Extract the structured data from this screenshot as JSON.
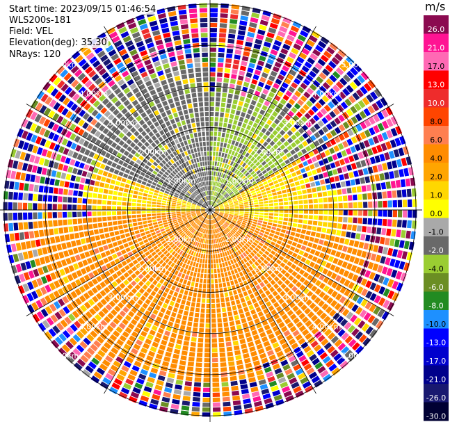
{
  "header": {
    "start_time": "Start time: 2023/09/15 01:46:54",
    "instrument": "WLS200s-181",
    "field": "Field: VEL",
    "elevation": "Elevation(deg): 35.30",
    "nrays": "NRays: 120"
  },
  "chart_data": {
    "type": "heatmap",
    "projection": "polar-ppi",
    "field": "VEL",
    "units": "m/s",
    "elevation_deg": 35.3,
    "nrays": 120,
    "range_ring_labels": [
      "1.00km",
      "2.00km",
      "3.00km",
      "4.00km",
      "5.00km"
    ],
    "range_rings_km": [
      1,
      2,
      3,
      4,
      5
    ],
    "max_range_km": 5.15,
    "grid": true,
    "colorbar": {
      "title": "m/s",
      "tick_labels": [
        "26.0",
        "21.0",
        "17.0",
        "13.0",
        "10.0",
        "8.0",
        "6.0",
        "4.0",
        "2.0",
        "1.0",
        "0.0",
        "-1.0",
        "-2.0",
        "-4.0",
        "-6.0",
        "-8.0",
        "-10.0",
        "-13.0",
        "-17.0",
        "-21.0",
        "-26.0",
        "-30.0"
      ],
      "colors": [
        "#8B0A50",
        "#FF1493",
        "#FF69B4",
        "#FF0000",
        "#EE2C2C",
        "#FF4500",
        "#FF7F50",
        "#FF8C00",
        "#FFA500",
        "#FFD700",
        "#FFFF00",
        "#A9A9A9",
        "#696969",
        "#9ACD32",
        "#6B8E23",
        "#228B22",
        "#1E90FF",
        "#0000FF",
        "#0000CD",
        "#00008B",
        "#191970",
        "#000033"
      ],
      "placement": "right"
    },
    "sectors": [
      {
        "from_deg": 0,
        "to_deg": 60,
        "velocity": -4.5,
        "extent_km": 2.8
      },
      {
        "from_deg": 60,
        "to_deg": 80,
        "velocity": 0.5,
        "extent_km": 2.4
      },
      {
        "from_deg": 80,
        "to_deg": 100,
        "velocity": 0.5,
        "extent_km": 3.2
      },
      {
        "from_deg": 100,
        "to_deg": 170,
        "velocity": 3.0,
        "extent_km": 3.9
      },
      {
        "from_deg": 170,
        "to_deg": 265,
        "velocity": 3.0,
        "extent_km": 4.2
      },
      {
        "from_deg": 265,
        "to_deg": 290,
        "velocity": 0.5,
        "extent_km": 2.8
      },
      {
        "from_deg": 290,
        "to_deg": 360,
        "velocity": -3.0,
        "extent_km": 3.4
      }
    ],
    "far_range_note_km": 3.9
  }
}
